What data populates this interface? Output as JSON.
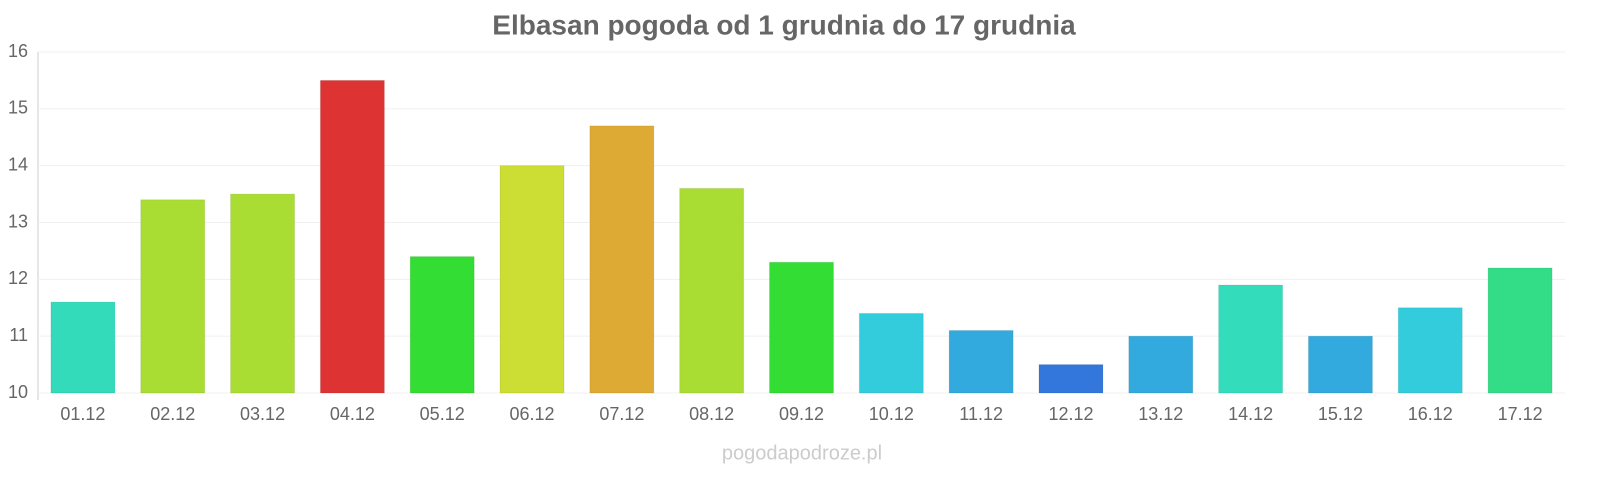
{
  "chart_data": {
    "type": "bar",
    "title": "Elbasan pogoda od 1 grudnia do 17 grudnia",
    "categories": [
      "01.12",
      "02.12",
      "03.12",
      "04.12",
      "05.12",
      "06.12",
      "07.12",
      "08.12",
      "09.12",
      "10.12",
      "11.12",
      "12.12",
      "13.12",
      "14.12",
      "15.12",
      "16.12",
      "17.12"
    ],
    "values": [
      11.6,
      13.4,
      13.5,
      15.5,
      12.4,
      14.0,
      14.7,
      13.6,
      12.3,
      11.4,
      11.1,
      10.5,
      11.0,
      11.9,
      11.0,
      11.5,
      12.2
    ],
    "colors": [
      "#33dbbb",
      "#aadd33",
      "#aadd33",
      "#dd3333",
      "#33dd33",
      "#ccdd33",
      "#ddaa33",
      "#aadd33",
      "#33dd33",
      "#33ccdd",
      "#33aadd",
      "#3377dd",
      "#33aadd",
      "#33ddbb",
      "#33aadd",
      "#33ccdd",
      "#33dd88"
    ],
    "ylim": [
      10,
      16
    ],
    "yticks": [
      10,
      11,
      12,
      13,
      14,
      15,
      16
    ],
    "grid": true,
    "source": "pogodapodroze.pl"
  }
}
